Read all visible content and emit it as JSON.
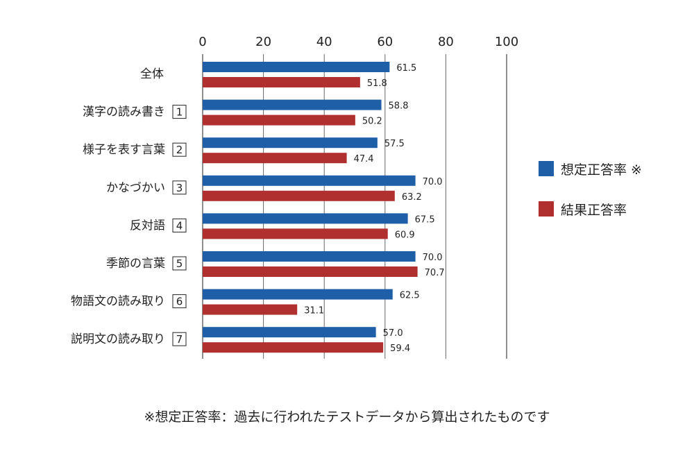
{
  "chart_data": {
    "type": "bar",
    "orientation": "horizontal",
    "categories": [
      "全体",
      "漢字の読み書き",
      "様子を表す言葉",
      "かなづかい",
      "反対語",
      "季節の言葉",
      "物語文の読み取り",
      "説明文の読み取り"
    ],
    "category_numbers": [
      "",
      "1",
      "2",
      "3",
      "4",
      "5",
      "6",
      "7"
    ],
    "series": [
      {
        "name": "想定正答率 ※",
        "color": "#1f5fa8",
        "values": [
          61.5,
          58.8,
          57.5,
          70.0,
          67.5,
          70.0,
          62.5,
          57.0
        ],
        "labels": [
          "61.5",
          "58.8",
          "57.5",
          "70.0",
          "67.5",
          "70.0",
          "62.5",
          "57.0"
        ]
      },
      {
        "name": "結果正答率",
        "color": "#b03030",
        "values": [
          51.8,
          50.2,
          47.4,
          63.2,
          60.9,
          70.7,
          31.1,
          59.4
        ],
        "labels": [
          "51.8",
          "50.2",
          "47.4",
          "63.2",
          "60.9",
          "70.7",
          "31.1",
          "59.4"
        ]
      }
    ],
    "xlim": [
      0,
      100
    ],
    "xticks": [
      "0",
      "20",
      "40",
      "60",
      "80",
      "100"
    ],
    "grid": true,
    "legend": "right"
  },
  "footnote": "※想定正答率：過去に行われたテストデータから算出されたものです"
}
